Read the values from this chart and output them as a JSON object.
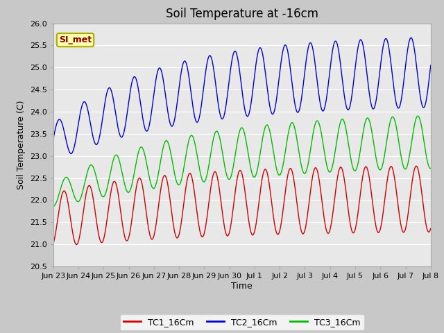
{
  "title": "Soil Temperature at -16cm",
  "xlabel": "Time",
  "ylabel": "Soil Temperature (C)",
  "ylim": [
    20.5,
    26.0
  ],
  "fig_bg_color": "#c8c8c8",
  "plot_bg_color": "#e8e8e8",
  "grid_color": "white",
  "tc1_color": "#cc0000",
  "tc2_color": "#0000cc",
  "tc3_color": "#00bb00",
  "legend_labels": [
    "TC1_16Cm",
    "TC2_16Cm",
    "TC3_16Cm"
  ],
  "annotation_text": "SI_met",
  "annotation_color": "#880000",
  "annotation_bg": "#ffffaa",
  "annotation_border": "#aaaa00",
  "x_tick_labels": [
    "Jun 23",
    "Jun 24",
    "Jun 25",
    "Jun 26",
    "Jun 27",
    "Jun 28",
    "Jun 29",
    "Jun 30",
    "Jul 1",
    "Jul 2",
    "Jul 3",
    "Jul 4",
    "Jul 5",
    "Jul 6",
    "Jul 7",
    "Jul 8"
  ],
  "title_fontsize": 12,
  "axis_label_fontsize": 9,
  "tick_fontsize": 8,
  "legend_fontsize": 9
}
